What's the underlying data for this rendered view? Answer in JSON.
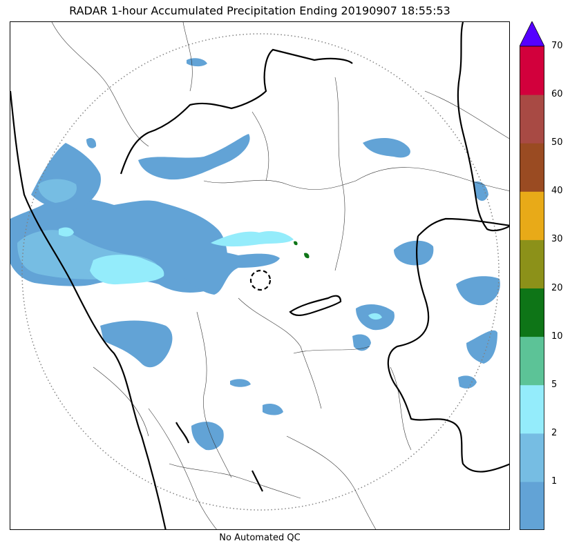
{
  "title": "RADAR 1-hour Accumulated Precipitation Ending 20190907 18:55:53",
  "footer": "No Automated QC",
  "colorbar": {
    "ticks": [
      "1",
      "2",
      "5",
      "10",
      "20",
      "30",
      "40",
      "50",
      "60",
      "70"
    ],
    "colors": [
      "#62a3d6",
      "#76bde3",
      "#94ecfb",
      "#5cc397",
      "#0e7517",
      "#8c9119",
      "#e8aa18",
      "#9a4b22",
      "#a84a44",
      "#d2003c"
    ],
    "extend_color": "#5500ff"
  },
  "map": {
    "range_ring": "dotted-grey",
    "radar_site_marker": "dashed-circle",
    "precip_colors": {
      "light": "#62a3d6",
      "medium": "#76bde3",
      "heavy": "#94ecfb",
      "very_heavy": "#0e7517"
    }
  }
}
